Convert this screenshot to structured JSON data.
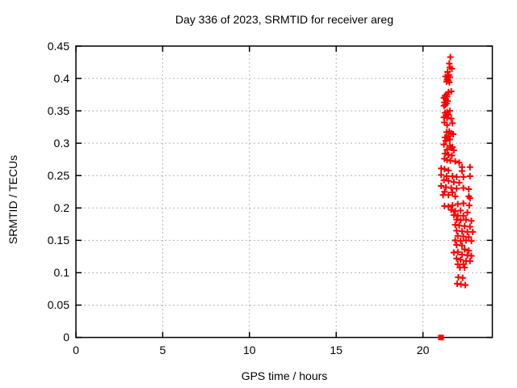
{
  "page": {
    "background": "#ffffff",
    "text_color": "#000000",
    "grid_color": "#b4b4b4",
    "marker_color": "#ff0000"
  },
  "chart_data": {
    "type": "scatter",
    "title": "Day 336 of 2023, SRMTID for receiver areg",
    "xlabel": "GPS time / hours",
    "ylabel": "SRMTID / TECUs",
    "xlim": [
      0,
      24
    ],
    "ylim": [
      0,
      0.45
    ],
    "xticks": [
      0,
      5,
      10,
      15,
      20
    ],
    "xtick_labels": [
      "0",
      "5",
      "10",
      "15",
      "20"
    ],
    "yticks": [
      0,
      0.05,
      0.1,
      0.15,
      0.2,
      0.25,
      0.3,
      0.35,
      0.4,
      0.45
    ],
    "ytick_labels": [
      "0",
      "0.05",
      "0.1",
      "0.15",
      "0.2",
      "0.25",
      "0.3",
      "0.35",
      "0.4",
      "0.45"
    ],
    "grid": true,
    "legend": "none",
    "series": [
      {
        "name": "SRMTID",
        "marker": "plus",
        "color": "#ff0000",
        "points": [
          [
            21.58,
            0.433
          ],
          [
            21.52,
            0.423
          ],
          [
            21.55,
            0.417
          ],
          [
            21.67,
            0.415
          ],
          [
            21.42,
            0.41
          ],
          [
            21.49,
            0.405
          ],
          [
            21.3,
            0.403
          ],
          [
            21.55,
            0.402
          ],
          [
            21.39,
            0.398
          ],
          [
            21.47,
            0.397
          ],
          [
            21.36,
            0.395
          ],
          [
            21.52,
            0.394
          ],
          [
            21.63,
            0.38
          ],
          [
            21.47,
            0.379
          ],
          [
            21.36,
            0.375
          ],
          [
            21.27,
            0.373
          ],
          [
            21.39,
            0.372
          ],
          [
            21.21,
            0.37
          ],
          [
            21.32,
            0.368
          ],
          [
            21.42,
            0.365
          ],
          [
            21.24,
            0.363
          ],
          [
            21.36,
            0.361
          ],
          [
            21.28,
            0.359
          ],
          [
            21.21,
            0.358
          ],
          [
            21.55,
            0.35
          ],
          [
            21.39,
            0.348
          ],
          [
            21.27,
            0.347
          ],
          [
            21.47,
            0.344
          ],
          [
            21.32,
            0.343
          ],
          [
            21.21,
            0.34
          ],
          [
            21.39,
            0.339
          ],
          [
            21.63,
            0.338
          ],
          [
            21.24,
            0.332
          ],
          [
            21.7,
            0.331
          ],
          [
            21.39,
            0.328
          ],
          [
            21.52,
            0.318
          ],
          [
            21.36,
            0.317
          ],
          [
            21.63,
            0.315
          ],
          [
            21.74,
            0.314
          ],
          [
            21.47,
            0.311
          ],
          [
            21.27,
            0.309
          ],
          [
            21.42,
            0.307
          ],
          [
            21.55,
            0.306
          ],
          [
            21.32,
            0.304
          ],
          [
            21.21,
            0.298
          ],
          [
            21.55,
            0.296
          ],
          [
            21.7,
            0.294
          ],
          [
            21.63,
            0.293
          ],
          [
            21.39,
            0.29
          ],
          [
            21.78,
            0.289
          ],
          [
            21.27,
            0.284
          ],
          [
            21.47,
            0.282
          ],
          [
            21.67,
            0.281
          ],
          [
            21.24,
            0.276
          ],
          [
            21.39,
            0.274
          ],
          [
            21.58,
            0.273
          ],
          [
            21.86,
            0.272
          ],
          [
            22.09,
            0.27
          ],
          [
            22.25,
            0.263
          ],
          [
            22.71,
            0.263
          ],
          [
            21.05,
            0.261
          ],
          [
            21.24,
            0.26
          ],
          [
            21.47,
            0.258
          ],
          [
            22.25,
            0.257
          ],
          [
            21.05,
            0.251
          ],
          [
            21.36,
            0.249
          ],
          [
            21.7,
            0.249
          ],
          [
            21.94,
            0.248
          ],
          [
            22.33,
            0.248
          ],
          [
            22.71,
            0.249
          ],
          [
            21.21,
            0.243
          ],
          [
            21.47,
            0.242
          ],
          [
            21.78,
            0.24
          ],
          [
            22.09,
            0.239
          ],
          [
            21.05,
            0.234
          ],
          [
            21.32,
            0.232
          ],
          [
            21.63,
            0.231
          ],
          [
            21.94,
            0.23
          ],
          [
            22.33,
            0.231
          ],
          [
            22.64,
            0.229
          ],
          [
            21.24,
            0.225
          ],
          [
            21.7,
            0.224
          ],
          [
            21.16,
            0.22
          ],
          [
            21.47,
            0.22
          ],
          [
            21.86,
            0.218
          ],
          [
            22.64,
            0.218
          ],
          [
            22.71,
            0.215
          ],
          [
            21.24,
            0.203
          ],
          [
            21.47,
            0.202
          ],
          [
            21.7,
            0.204
          ],
          [
            22.01,
            0.206
          ],
          [
            22.33,
            0.207
          ],
          [
            22.67,
            0.204
          ],
          [
            21.63,
            0.197
          ],
          [
            21.86,
            0.195
          ],
          [
            22.17,
            0.196
          ],
          [
            22.56,
            0.193
          ],
          [
            21.78,
            0.189
          ],
          [
            22.01,
            0.188
          ],
          [
            22.33,
            0.188
          ],
          [
            21.94,
            0.182
          ],
          [
            22.17,
            0.181
          ],
          [
            22.48,
            0.182
          ],
          [
            22.79,
            0.18
          ],
          [
            21.86,
            0.174
          ],
          [
            22.09,
            0.173
          ],
          [
            22.4,
            0.172
          ],
          [
            22.71,
            0.171
          ],
          [
            21.94,
            0.165
          ],
          [
            22.25,
            0.164
          ],
          [
            22.56,
            0.163
          ],
          [
            22.87,
            0.163
          ],
          [
            22.01,
            0.157
          ],
          [
            22.33,
            0.156
          ],
          [
            22.64,
            0.155
          ],
          [
            21.86,
            0.15
          ],
          [
            22.17,
            0.149
          ],
          [
            22.48,
            0.15
          ],
          [
            22.79,
            0.149
          ],
          [
            21.94,
            0.143
          ],
          [
            22.25,
            0.142
          ],
          [
            22.4,
            0.136
          ],
          [
            22.64,
            0.134
          ],
          [
            22.01,
            0.132
          ],
          [
            21.78,
            0.131
          ],
          [
            22.25,
            0.128
          ],
          [
            22.56,
            0.127
          ],
          [
            22.79,
            0.126
          ],
          [
            21.94,
            0.122
          ],
          [
            22.17,
            0.12
          ],
          [
            22.48,
            0.118
          ],
          [
            22.71,
            0.118
          ],
          [
            22.01,
            0.113
          ],
          [
            22.33,
            0.113
          ],
          [
            22.13,
            0.108
          ],
          [
            22.4,
            0.108
          ],
          [
            22.04,
            0.093
          ],
          [
            22.29,
            0.092
          ],
          [
            21.97,
            0.083
          ],
          [
            22.19,
            0.082
          ],
          [
            22.44,
            0.081
          ]
        ]
      },
      {
        "name": "zero-value-flag",
        "marker": "square",
        "color": "#ff0000",
        "points": [
          [
            21.04,
            0
          ]
        ]
      }
    ]
  }
}
